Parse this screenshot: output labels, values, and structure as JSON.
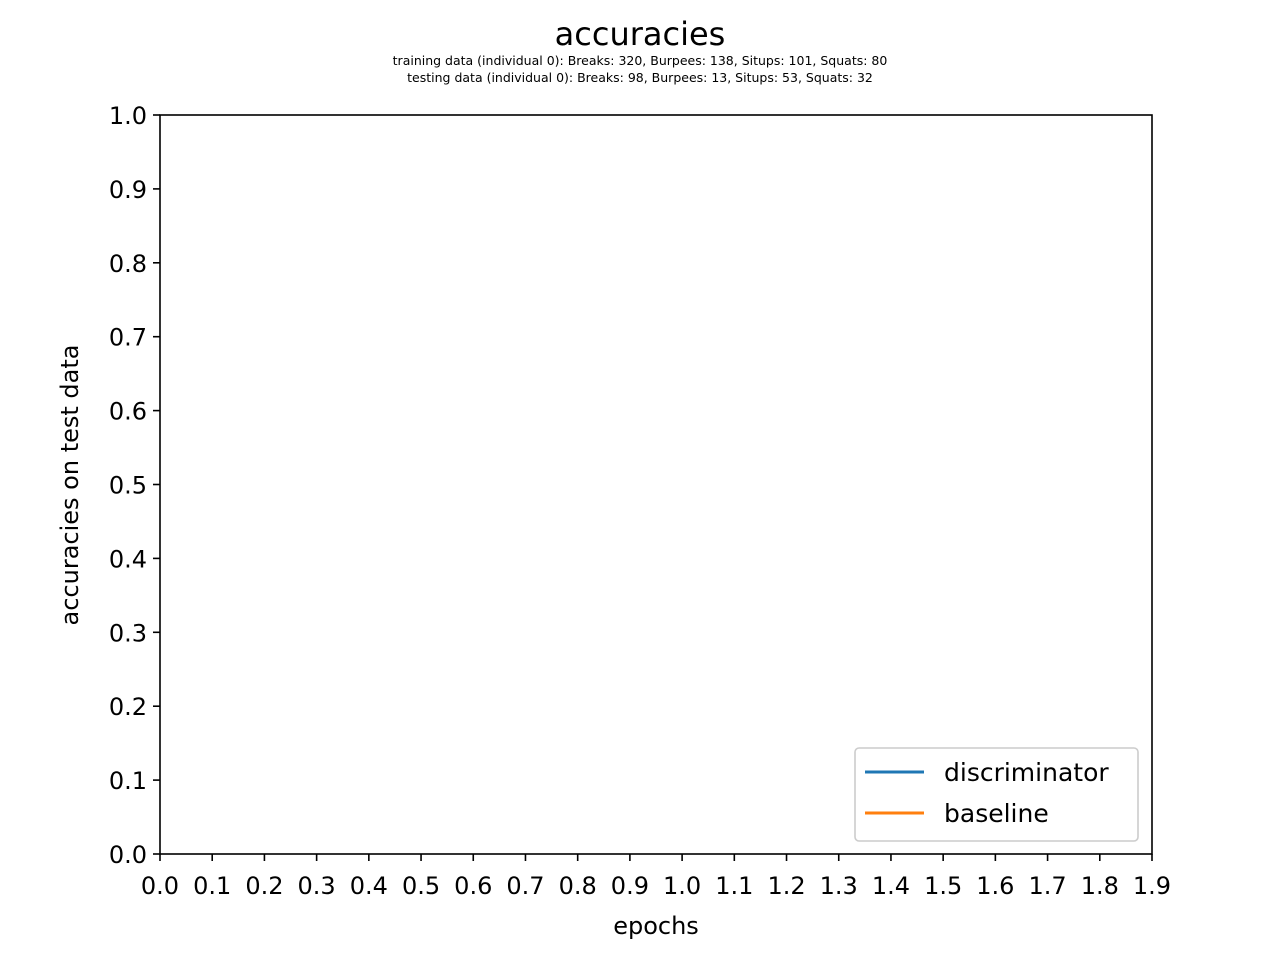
{
  "chart_data": {
    "type": "line",
    "title": "accuracies",
    "subtitle_lines": [
      "training data (individual 0): Breaks: 320, Burpees: 138, Situps: 101, Squats: 80",
      "testing data (individual 0): Breaks: 98, Burpees: 13, Situps: 53, Squats: 32"
    ],
    "xlabel": "epochs",
    "ylabel": "accuracies on test data",
    "xlim": [
      0.0,
      1.9
    ],
    "ylim": [
      0.0,
      1.0
    ],
    "xticks": [
      "0.0",
      "0.1",
      "0.2",
      "0.3",
      "0.4",
      "0.5",
      "0.6",
      "0.7",
      "0.8",
      "0.9",
      "1.0",
      "1.1",
      "1.2",
      "1.3",
      "1.4",
      "1.5",
      "1.6",
      "1.7",
      "1.8",
      "1.9"
    ],
    "yticks": [
      "0.0",
      "0.1",
      "0.2",
      "0.3",
      "0.4",
      "0.5",
      "0.6",
      "0.7",
      "0.8",
      "0.9",
      "1.0"
    ],
    "grid": false,
    "legend_position": "lower-right",
    "series": [
      {
        "name": "discriminator",
        "color": "#1f77b4",
        "x": [],
        "y": []
      },
      {
        "name": "baseline",
        "color": "#ff7f0e",
        "x": [],
        "y": []
      }
    ]
  }
}
